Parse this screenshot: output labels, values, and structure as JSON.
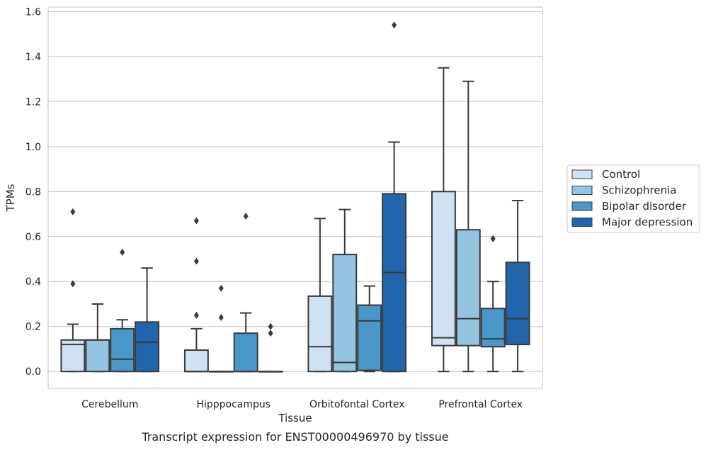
{
  "caption": "Transcript expression for ENST00000496970 by tissue",
  "chart_data": {
    "type": "boxplot",
    "title": "",
    "xlabel": "Tissue",
    "ylabel": "TPMs",
    "ylim": [
      -0.075,
      1.62
    ],
    "yticks": [
      "0.0",
      "0.2",
      "0.4",
      "0.6",
      "0.8",
      "1.0",
      "1.2",
      "1.4",
      "1.6"
    ],
    "grid": true,
    "legend_position": "right",
    "categories": [
      "Cerebellum",
      "Hipppocampus",
      "Orbitofontal Cortex",
      "Prefrontal Cortex"
    ],
    "series": [
      {
        "name": "Control",
        "color": "#d0e1f2",
        "boxes": [
          {
            "whislo": 0.0,
            "q1": 0.0,
            "med": 0.12,
            "q3": 0.14,
            "whishi": 0.21,
            "fliers": [
              0.39,
              0.71
            ]
          },
          {
            "whislo": 0.0,
            "q1": 0.0,
            "med": 0.0,
            "q3": 0.095,
            "whishi": 0.19,
            "fliers": [
              0.25,
              0.49,
              0.67
            ]
          },
          {
            "whislo": 0.0,
            "q1": 0.0,
            "med": 0.11,
            "q3": 0.335,
            "whishi": 0.68,
            "fliers": []
          },
          {
            "whislo": 0.0,
            "q1": 0.115,
            "med": 0.15,
            "q3": 0.8,
            "whishi": 1.35,
            "fliers": []
          }
        ]
      },
      {
        "name": "Schizophrenia",
        "color": "#94c4df",
        "boxes": [
          {
            "whislo": 0.0,
            "q1": 0.0,
            "med": 0.14,
            "q3": 0.14,
            "whishi": 0.3,
            "fliers": []
          },
          {
            "whislo": 0.0,
            "q1": 0.0,
            "med": 0.0,
            "q3": 0.0,
            "whishi": 0.0,
            "fliers": [
              0.24,
              0.37
            ]
          },
          {
            "whislo": 0.0,
            "q1": 0.0,
            "med": 0.04,
            "q3": 0.52,
            "whishi": 0.72,
            "fliers": []
          },
          {
            "whislo": 0.0,
            "q1": 0.115,
            "med": 0.235,
            "q3": 0.63,
            "whishi": 1.29,
            "fliers": []
          }
        ]
      },
      {
        "name": "Bipolar disorder",
        "color": "#4a98c9",
        "boxes": [
          {
            "whislo": 0.0,
            "q1": 0.0,
            "med": 0.055,
            "q3": 0.19,
            "whishi": 0.23,
            "fliers": [
              0.53
            ]
          },
          {
            "whislo": 0.0,
            "q1": 0.0,
            "med": 0.0,
            "q3": 0.17,
            "whishi": 0.26,
            "fliers": [
              0.69
            ]
          },
          {
            "whislo": 0.0,
            "q1": 0.005,
            "med": 0.225,
            "q3": 0.295,
            "whishi": 0.38,
            "fliers": []
          },
          {
            "whislo": 0.0,
            "q1": 0.11,
            "med": 0.145,
            "q3": 0.28,
            "whishi": 0.4,
            "fliers": [
              0.59
            ]
          }
        ]
      },
      {
        "name": "Major depression",
        "color": "#2166ac",
        "boxes": [
          {
            "whislo": 0.0,
            "q1": 0.0,
            "med": 0.13,
            "q3": 0.22,
            "whishi": 0.46,
            "fliers": []
          },
          {
            "whislo": 0.0,
            "q1": 0.0,
            "med": 0.0,
            "q3": 0.0,
            "whishi": 0.0,
            "fliers": [
              0.17,
              0.2
            ]
          },
          {
            "whislo": 0.0,
            "q1": 0.0,
            "med": 0.44,
            "q3": 0.79,
            "whishi": 1.02,
            "fliers": [
              1.54
            ]
          },
          {
            "whislo": 0.0,
            "q1": 0.12,
            "med": 0.235,
            "q3": 0.485,
            "whishi": 0.76,
            "fliers": []
          }
        ]
      }
    ]
  }
}
